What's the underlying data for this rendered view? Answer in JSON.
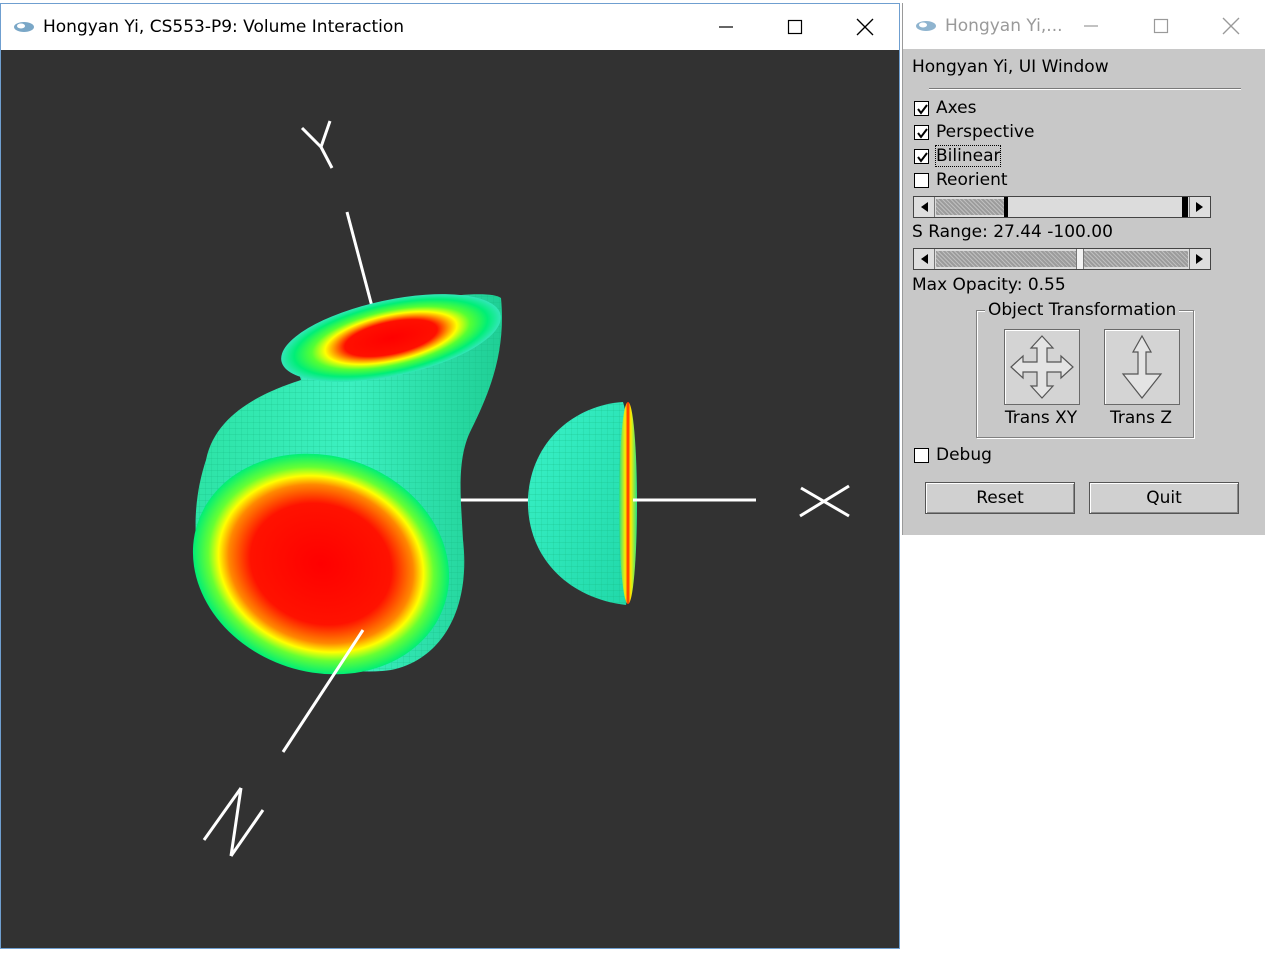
{
  "main_window": {
    "title": "Hongyan Yi, CS553-P9: Volume Interaction",
    "axes": {
      "x_label": "X",
      "y_label": "Y",
      "z_label": "Z"
    }
  },
  "ui_window": {
    "title": "Hongyan Yi,...",
    "heading": "Hongyan Yi, UI Window",
    "checkboxes": [
      {
        "label": "Axes",
        "checked": true
      },
      {
        "label": "Perspective",
        "checked": true
      },
      {
        "label": "Bilinear",
        "checked": true
      },
      {
        "label": "Reorient",
        "checked": false
      }
    ],
    "s_range_label": "S Range: 27.44 -100.00",
    "s_range": {
      "min": 27.44,
      "max": 100.0
    },
    "opacity_label": "Max Opacity: 0.55",
    "max_opacity": 0.55,
    "group_title": "Object Transformation",
    "tools": [
      {
        "label": "Trans XY",
        "icon": "move-xy-icon"
      },
      {
        "label": "Trans Z",
        "icon": "move-z-icon"
      }
    ],
    "debug": {
      "label": "Debug",
      "checked": false
    },
    "buttons": {
      "reset": "Reset",
      "quit": "Quit"
    }
  },
  "colors": {
    "canvas_bg": "#323232",
    "panel_bg": "#c8c8c8",
    "volume_core": "#ff0000",
    "volume_mid": "#ffff00",
    "volume_outer": "#00ff66",
    "volume_shell": "#2ce8b0"
  }
}
